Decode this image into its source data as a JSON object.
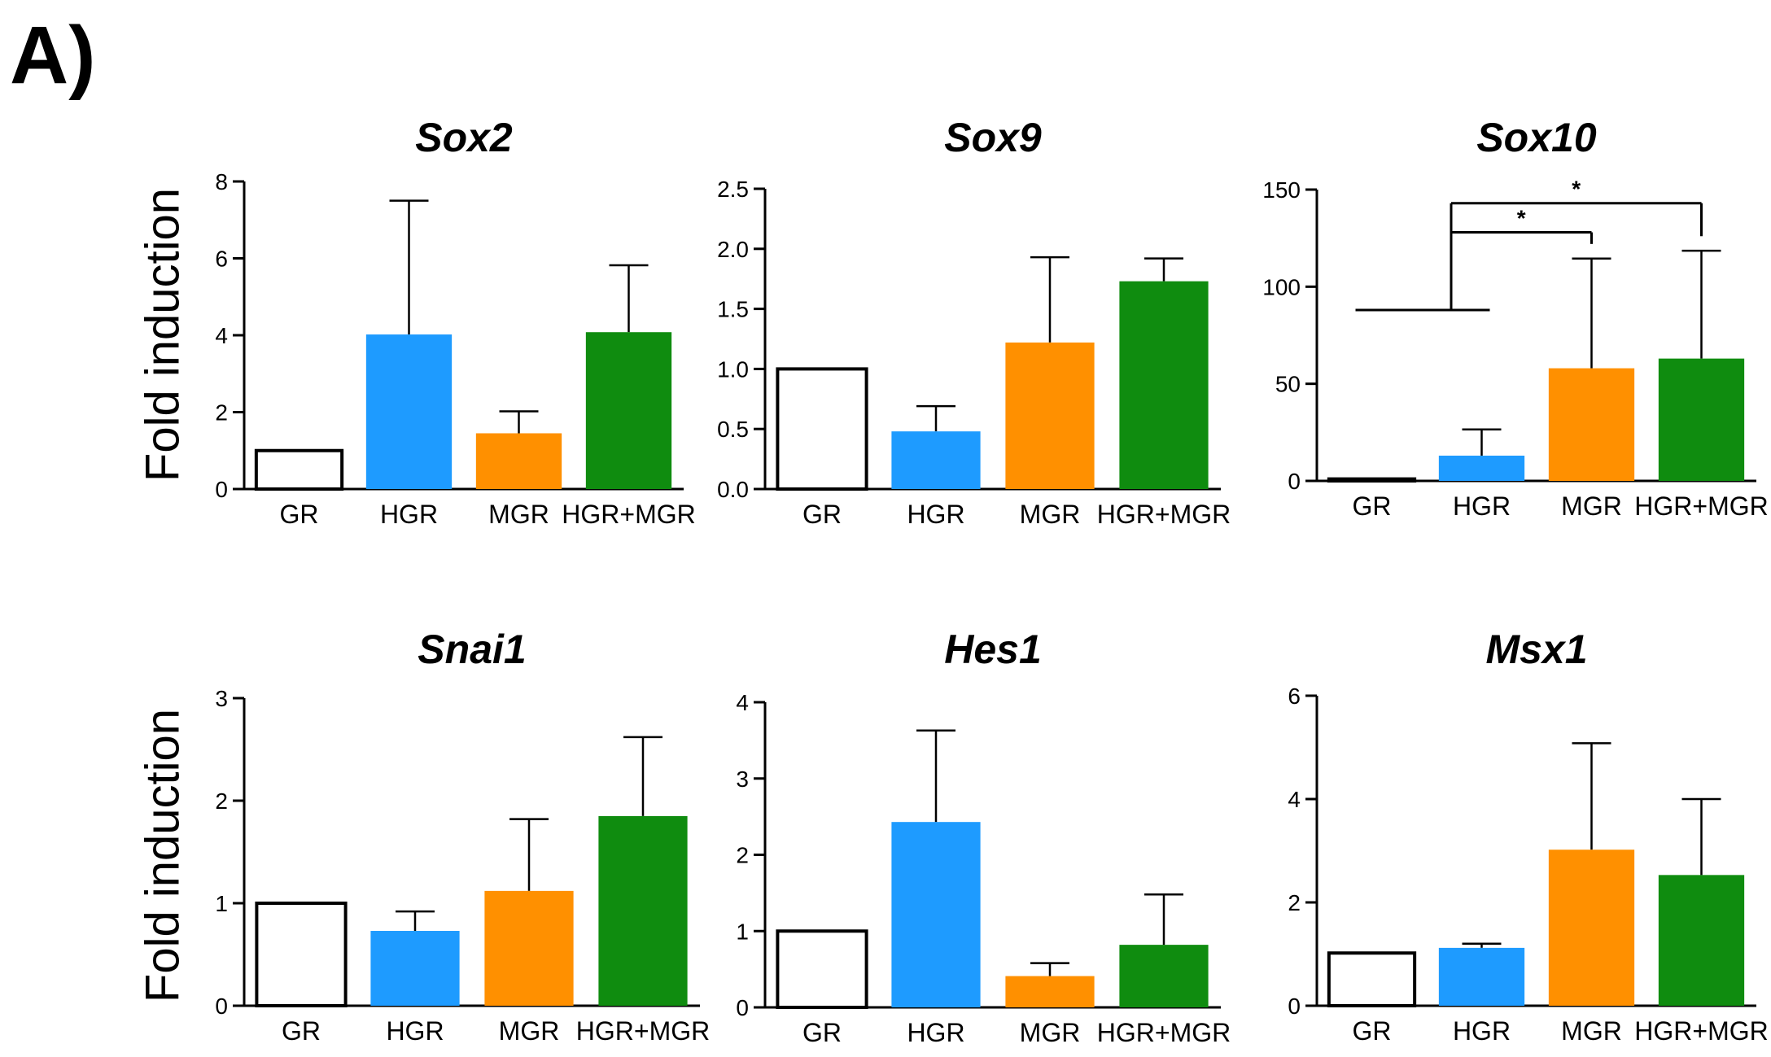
{
  "figure": {
    "panel_label": "A)",
    "ylabel_top": "Fold induction",
    "ylabel_bottom": "Fold induction"
  },
  "chart_data": [
    {
      "type": "bar",
      "title": "Sox2",
      "categories": [
        "GR",
        "HGR",
        "MGR",
        "HGR+MGR"
      ],
      "values": [
        1.0,
        4.02,
        1.45,
        4.08
      ],
      "error_upper": [
        0,
        3.48,
        0.57,
        1.74
      ],
      "colors": [
        "#ffffff",
        "#1e9bff",
        "#ff9000",
        "#0f8c0f"
      ],
      "ylim": [
        0,
        8
      ],
      "yticks": [
        0,
        2,
        4,
        6,
        8
      ],
      "ytick_labels": [
        "0",
        "2",
        "4",
        "6",
        "8"
      ],
      "significance": []
    },
    {
      "type": "bar",
      "title": "Sox9",
      "categories": [
        "GR",
        "HGR",
        "MGR",
        "HGR+MGR"
      ],
      "values": [
        1.0,
        0.48,
        1.22,
        1.73
      ],
      "error_upper": [
        0,
        0.21,
        0.71,
        0.19
      ],
      "colors": [
        "#ffffff",
        "#1e9bff",
        "#ff9000",
        "#0f8c0f"
      ],
      "ylim": [
        0,
        2.5
      ],
      "yticks": [
        0,
        0.5,
        1.0,
        1.5,
        2.0,
        2.5
      ],
      "ytick_labels": [
        "0.0",
        "0.5",
        "1.0",
        "1.5",
        "2.0",
        "2.5"
      ],
      "significance": []
    },
    {
      "type": "bar",
      "title": "Sox10",
      "categories": [
        "GR",
        "HGR",
        "MGR",
        "HGR+MGR"
      ],
      "values": [
        1.0,
        13.0,
        58.0,
        63.0
      ],
      "error_upper": [
        0,
        13.5,
        56.5,
        55.5
      ],
      "colors": [
        "#ffffff",
        "#1e9bff",
        "#ff9000",
        "#0f8c0f"
      ],
      "ylim": [
        0,
        150
      ],
      "yticks": [
        0,
        50,
        100,
        150
      ],
      "ytick_labels": [
        "0",
        "50",
        "100",
        "150"
      ],
      "significance": [
        {
          "from": [
            0,
            1
          ],
          "to": 2,
          "label": "*"
        },
        {
          "from": [
            0,
            1
          ],
          "to": 3,
          "label": "*"
        }
      ]
    },
    {
      "type": "bar",
      "title": "Snai1",
      "categories": [
        "GR",
        "HGR",
        "MGR",
        "HGR+MGR"
      ],
      "values": [
        1.0,
        0.73,
        1.12,
        1.85
      ],
      "error_upper": [
        0,
        0.19,
        0.7,
        0.77
      ],
      "colors": [
        "#ffffff",
        "#1e9bff",
        "#ff9000",
        "#0f8c0f"
      ],
      "ylim": [
        0,
        3
      ],
      "yticks": [
        0,
        1,
        2,
        3
      ],
      "ytick_labels": [
        "0",
        "1",
        "2",
        "3"
      ],
      "significance": []
    },
    {
      "type": "bar",
      "title": "Hes1",
      "categories": [
        "GR",
        "HGR",
        "MGR",
        "HGR+MGR"
      ],
      "values": [
        1.0,
        2.43,
        0.41,
        0.82
      ],
      "error_upper": [
        0,
        1.2,
        0.17,
        0.66
      ],
      "colors": [
        "#ffffff",
        "#1e9bff",
        "#ff9000",
        "#0f8c0f"
      ],
      "ylim": [
        0,
        4
      ],
      "yticks": [
        0,
        1,
        2,
        3,
        4
      ],
      "ytick_labels": [
        "0",
        "1",
        "2",
        "3",
        "4"
      ],
      "significance": []
    },
    {
      "type": "bar",
      "title": "Msx1",
      "categories": [
        "GR",
        "HGR",
        "MGR",
        "HGR+MGR"
      ],
      "values": [
        1.02,
        1.12,
        3.02,
        2.53
      ],
      "error_upper": [
        0,
        0.08,
        2.06,
        1.47
      ],
      "colors": [
        "#ffffff",
        "#1e9bff",
        "#ff9000",
        "#0f8c0f"
      ],
      "ylim": [
        0,
        6
      ],
      "yticks": [
        0,
        2,
        4,
        6
      ],
      "ytick_labels": [
        "0",
        "2",
        "4",
        "6"
      ],
      "significance": []
    }
  ]
}
